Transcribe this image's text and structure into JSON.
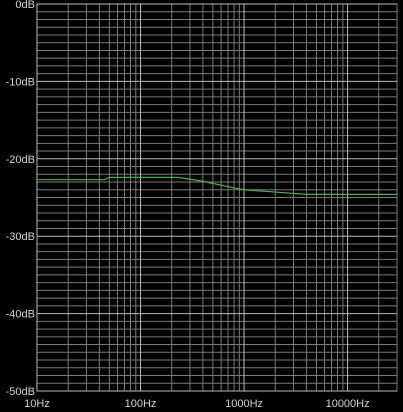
{
  "chart_data": {
    "type": "line",
    "xscale": "log",
    "grid": true,
    "background": "#000000",
    "grid_color": "#7a7a7a",
    "xlim": [
      10,
      30000
    ],
    "ylim": [
      -50,
      0
    ],
    "xticks": [
      {
        "value": 10,
        "label": "10Hz"
      },
      {
        "value": 100,
        "label": "100Hz"
      },
      {
        "value": 1000,
        "label": "1000Hz"
      },
      {
        "value": 10000,
        "label": "10000Hz"
      }
    ],
    "x_minor_ticks": [
      20,
      30,
      40,
      50,
      60,
      70,
      80,
      90,
      200,
      300,
      400,
      500,
      600,
      700,
      800,
      900,
      2000,
      3000,
      4000,
      5000,
      6000,
      7000,
      8000,
      9000,
      20000
    ],
    "yticks": [
      {
        "value": 0,
        "label": "0dB"
      },
      {
        "value": -10,
        "label": "-10dB"
      },
      {
        "value": -20,
        "label": "-20dB"
      },
      {
        "value": -30,
        "label": "-30dB"
      },
      {
        "value": -40,
        "label": "-40dB"
      },
      {
        "value": -50,
        "label": "-50dB"
      }
    ],
    "y_minor_ticks": [
      -1,
      -2,
      -3,
      -4,
      -5,
      -6,
      -7,
      -8,
      -9,
      -11,
      -12,
      -13,
      -14,
      -15,
      -16,
      -17,
      -18,
      -19,
      -21,
      -22,
      -23,
      -24,
      -25,
      -26,
      -27,
      -28,
      -29,
      -31,
      -32,
      -33,
      -34,
      -35,
      -36,
      -37,
      -38,
      -39,
      -41,
      -42,
      -43,
      -44,
      -45,
      -46,
      -47,
      -48,
      -49
    ],
    "series": [
      {
        "color": "#4caf50",
        "x": [
          10,
          45,
          50,
          230,
          400,
          700,
          1000,
          2000,
          4000,
          30000
        ],
        "values": [
          -22.7,
          -22.7,
          -22.4,
          -22.4,
          -22.9,
          -23.6,
          -24.0,
          -24.3,
          -24.6,
          -24.6
        ]
      }
    ]
  }
}
